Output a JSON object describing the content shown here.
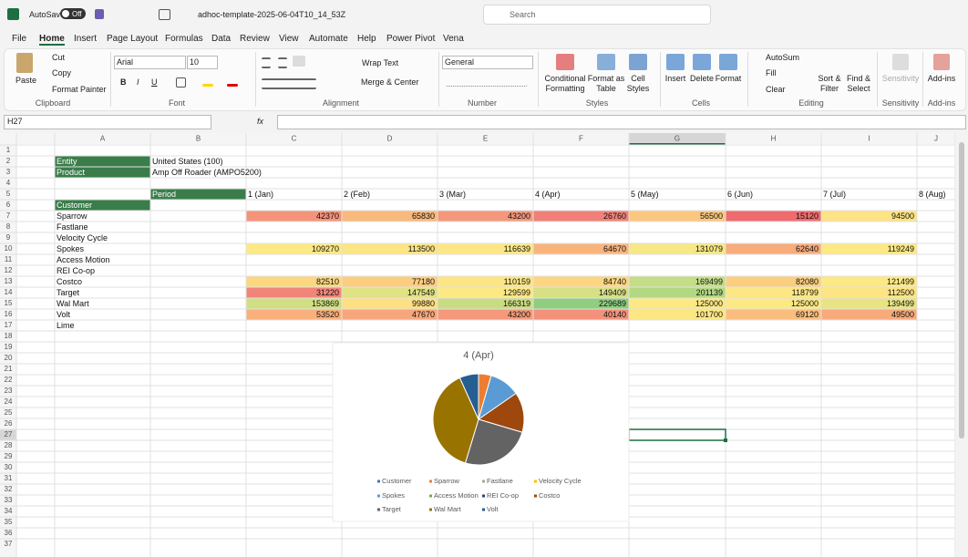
{
  "title_bar": {
    "autosave": "AutoSave",
    "toggle": "Off",
    "filename": "adhoc-template-2025-06-04T10_14_53Z",
    "search": "Search"
  },
  "tabs": [
    "File",
    "Home",
    "Insert",
    "Page Layout",
    "Formulas",
    "Data",
    "Review",
    "View",
    "Automate",
    "Help",
    "Power Pivot",
    "Vena"
  ],
  "ribbon": {
    "clipboard": {
      "label": "Clipboard",
      "paste": "Paste",
      "cut": "Cut",
      "copy": "Copy",
      "format_painter": "Format Painter"
    },
    "font": {
      "label": "Font",
      "name": "Arial",
      "size": 10,
      "bold": "B",
      "italic": "I",
      "underline": "U"
    },
    "alignment": {
      "label": "Alignment",
      "wrap_text": "Wrap Text",
      "merge_center": "Merge & Center"
    },
    "number": {
      "label": "Number",
      "format": "General"
    },
    "styles": {
      "label": "Styles",
      "conditional_formatting": [
        "Conditional",
        "Formatting"
      ],
      "format_as_table": [
        "Format as",
        "Table"
      ],
      "cell_styles": [
        "Cell",
        "Styles"
      ]
    },
    "cells": {
      "label": "Cells",
      "insert": "Insert",
      "delete": "Delete",
      "format": "Format"
    },
    "editing": {
      "label": "Editing",
      "autosum": "AutoSum",
      "fill": "Fill",
      "clear": "Clear",
      "sort_filter": [
        "Sort &",
        "Filter"
      ],
      "find_select": [
        "Find &",
        "Select"
      ]
    },
    "sensitivity": {
      "label": "Sensitivity",
      "button": "Sensitivity"
    },
    "addins": {
      "label": "Add-ins",
      "button": "Add-ins"
    }
  },
  "formula_bar": {
    "name_box": "H27",
    "fx": "fx"
  },
  "sheet": {
    "columns": [
      "A",
      "B",
      "C",
      "D",
      "E",
      "F",
      "G",
      "H",
      "I",
      "J"
    ],
    "row_numbers": [
      1,
      2,
      3,
      4,
      5,
      6,
      7,
      8,
      9,
      10,
      11,
      12,
      13,
      14,
      15,
      16,
      17,
      18,
      19,
      20,
      21,
      22,
      23,
      24,
      25,
      26,
      27,
      28,
      29,
      30,
      31,
      32,
      33,
      34,
      35,
      36,
      37
    ],
    "info": [
      {
        "label": "Entity",
        "value": "United States (100)"
      },
      {
        "label": "Product",
        "value": "Amp Off Roader (AMPO5200)"
      }
    ],
    "period_label": "Period",
    "periods": [
      "1 (Jan)",
      "2 (Feb)",
      "3 (Mar)",
      "4 (Apr)",
      "5 (May)",
      "6 (Jun)",
      "7 (Jul)",
      "8 (Aug)"
    ],
    "customer_label": "Customer",
    "customers": [
      {
        "name": "Sparrow",
        "values": [
          42370,
          65830,
          43200,
          26760,
          56500,
          15120,
          94500
        ],
        "colors": [
          "#f4937a",
          "#f9b97c",
          "#f4977b",
          "#f08078",
          "#fbc77f",
          "#ef6b6e",
          "#fde383"
        ]
      },
      {
        "name": "Fastlane"
      },
      {
        "name": "Velocity Cycle"
      },
      {
        "name": "Spokes",
        "values": [
          109270,
          113500,
          116639,
          64670,
          131079,
          62640,
          119249
        ],
        "colors": [
          "#fde984",
          "#fde583",
          "#fde784",
          "#f9b47c",
          "#f6e884",
          "#f8ac7a",
          "#fde984"
        ]
      },
      {
        "name": "Access Motion"
      },
      {
        "name": "REI Co-op"
      },
      {
        "name": "Costco",
        "values": [
          82510,
          77180,
          110159,
          84740,
          169499,
          82080,
          121499
        ],
        "colors": [
          "#fcd780",
          "#fccd7f",
          "#fde583",
          "#fcd680",
          "#c4dd86",
          "#fbcf7f",
          "#fde984"
        ]
      },
      {
        "name": "Target",
        "values": [
          31220,
          147549,
          129599,
          149409,
          201139,
          118799,
          112500
        ],
        "colors": [
          "#f2857a",
          "#e0e283",
          "#fde984",
          "#d7e083",
          "#b3d882",
          "#fde784",
          "#fde583"
        ]
      },
      {
        "name": "Wal Mart",
        "values": [
          153869,
          99880,
          166319,
          229689,
          125000,
          125000,
          139499
        ],
        "colors": [
          "#d1de82",
          "#fee082",
          "#c9dc82",
          "#8fcd7f",
          "#fde984",
          "#fde984",
          "#e8e483"
        ]
      },
      {
        "name": "Volt",
        "values": [
          53520,
          47670,
          43200,
          40140,
          101700,
          69120,
          49500
        ],
        "colors": [
          "#f9b07c",
          "#f7a67b",
          "#f5997a",
          "#f4917a",
          "#fde783",
          "#fabd7d",
          "#f8aa7b"
        ]
      },
      {
        "name": "Lime"
      }
    ]
  },
  "chart_data": {
    "type": "pie",
    "title": "4 (Apr)",
    "categories": [
      "Customer",
      "Sparrow",
      "Fastlane",
      "Velocity Cycle",
      "Spokes",
      "Access Motion",
      "REI Co-op",
      "Costco",
      "Target",
      "Wal Mart",
      "Volt"
    ],
    "values": [
      null,
      26760,
      null,
      null,
      64670,
      null,
      null,
      84740,
      149409,
      229689,
      40140
    ],
    "colors": [
      "#4472c4",
      "#ed7d31",
      "#a5a5a5",
      "#ffc000",
      "#5b9bd5",
      "#70ad47",
      "#264478",
      "#9e480e",
      "#636363",
      "#997300",
      "#255e91"
    ],
    "legend": "bottom"
  }
}
